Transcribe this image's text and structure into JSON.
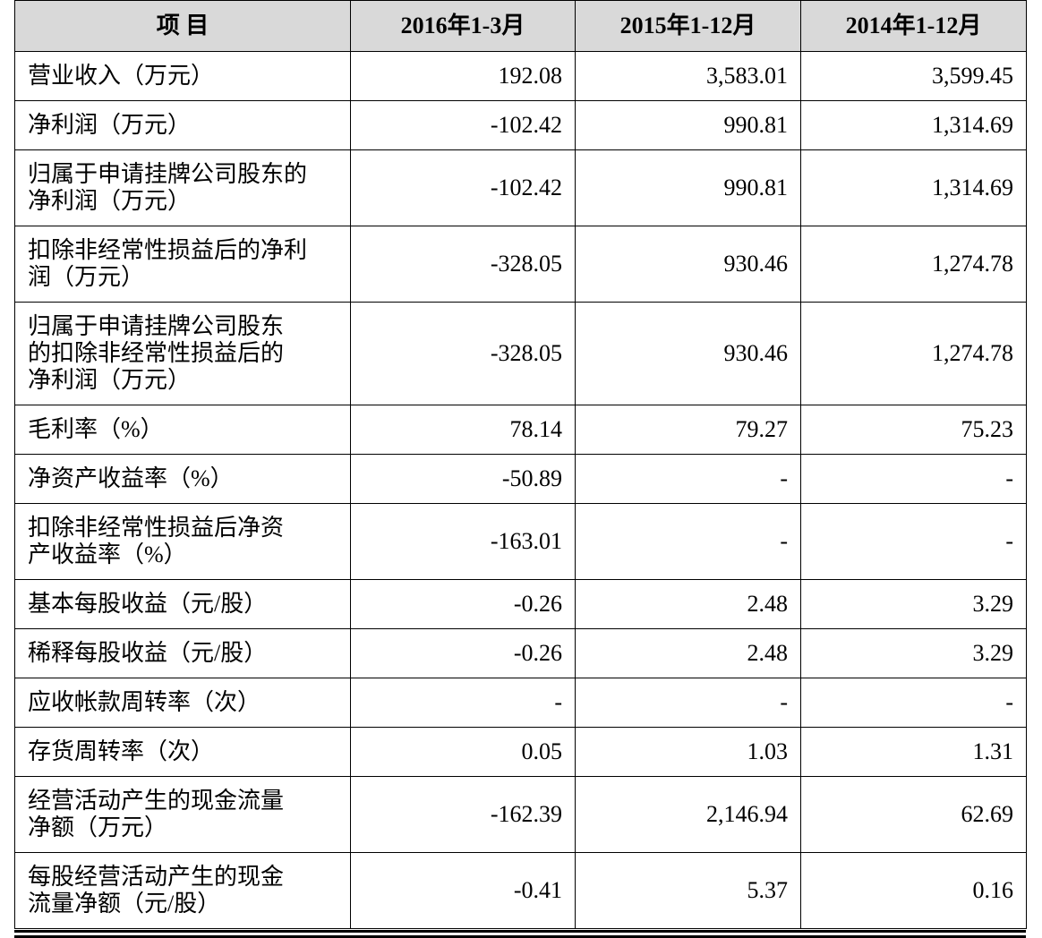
{
  "table": {
    "header": [
      "项 目",
      "2016年1-3月",
      "2015年1-12月",
      "2014年1-12月"
    ],
    "rows": [
      {
        "label": [
          "营业收入（万元）"
        ],
        "values": [
          "192.08",
          "3,583.01",
          "3,599.45"
        ]
      },
      {
        "label": [
          "净利润（万元）"
        ],
        "values": [
          "-102.42",
          "990.81",
          "1,314.69"
        ]
      },
      {
        "label": [
          "归属于申请挂牌公司股东的",
          "净利润（万元）"
        ],
        "values": [
          "-102.42",
          "990.81",
          "1,314.69"
        ]
      },
      {
        "label": [
          "扣除非经常性损益后的净利",
          "润（万元）"
        ],
        "values": [
          "-328.05",
          "930.46",
          "1,274.78"
        ]
      },
      {
        "label": [
          "归属于申请挂牌公司股东",
          "的扣除非经常性损益后的",
          "净利润（万元）"
        ],
        "values": [
          "-328.05",
          "930.46",
          "1,274.78"
        ]
      },
      {
        "label": [
          "毛利率（%）"
        ],
        "values": [
          "78.14",
          "79.27",
          "75.23"
        ]
      },
      {
        "label": [
          "净资产收益率（%）"
        ],
        "values": [
          "-50.89",
          "-",
          "-"
        ]
      },
      {
        "label": [
          "扣除非经常性损益后净资",
          "产收益率（%）"
        ],
        "values": [
          "-163.01",
          "-",
          "-"
        ]
      },
      {
        "label": [
          "基本每股收益（元/股）"
        ],
        "values": [
          "-0.26",
          "2.48",
          "3.29"
        ]
      },
      {
        "label": [
          "稀释每股收益（元/股）"
        ],
        "values": [
          "-0.26",
          "2.48",
          "3.29"
        ]
      },
      {
        "label": [
          "应收帐款周转率（次）"
        ],
        "values": [
          "-",
          "-",
          "-"
        ]
      },
      {
        "label": [
          "存货周转率（次）"
        ],
        "values": [
          "0.05",
          "1.03",
          "1.31"
        ]
      },
      {
        "label": [
          "经营活动产生的现金流量",
          "净额（万元）"
        ],
        "values": [
          "-162.39",
          "2,146.94",
          "62.69"
        ]
      },
      {
        "label": [
          "每股经营活动产生的现金",
          "流量净额（元/股）"
        ],
        "values": [
          "-0.41",
          "5.37",
          "0.16"
        ]
      }
    ]
  }
}
